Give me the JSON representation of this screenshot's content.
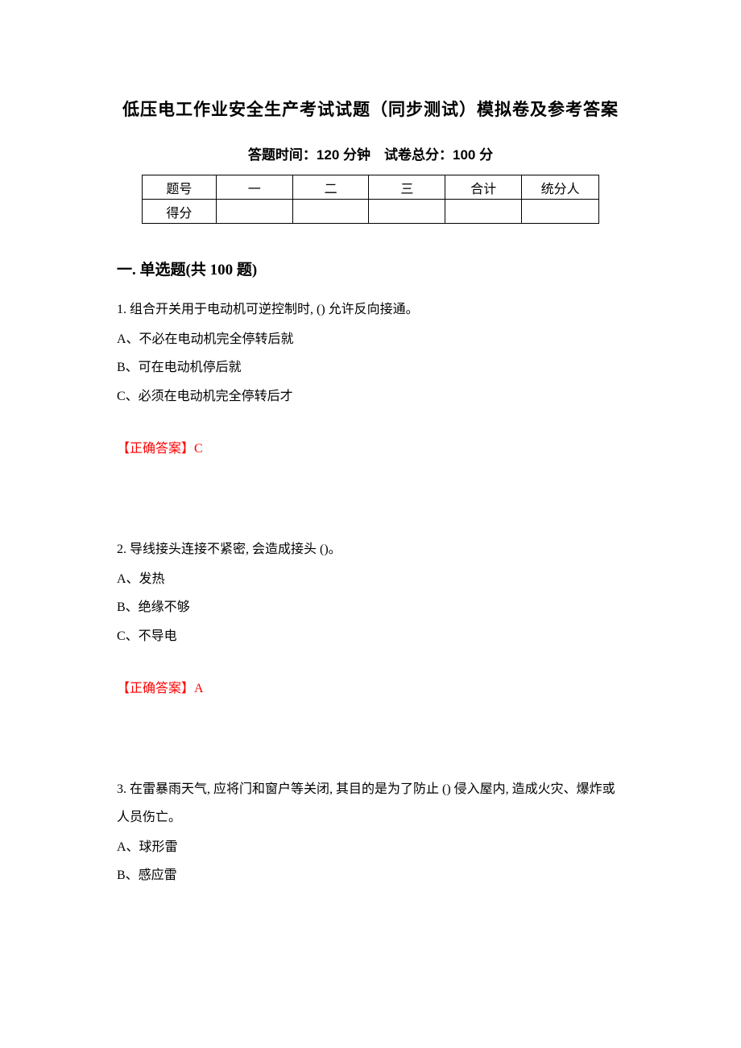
{
  "title": "低压电工作业安全生产考试试题（同步测试）模拟卷及参考答案",
  "subtitle": "答题时间：120 分钟　试卷总分：100 分",
  "table": {
    "row1": {
      "label": "题号",
      "c1": "一",
      "c2": "二",
      "c3": "三",
      "c4": "合计",
      "c5": "统分人"
    },
    "row2": {
      "label": "得分",
      "c1": "",
      "c2": "",
      "c3": "",
      "c4": "",
      "c5": ""
    }
  },
  "sectionTitle": "一. 单选题(共 100 题)",
  "questions": [
    {
      "stem": "1. 组合开关用于电动机可逆控制时, () 允许反向接通。",
      "options": [
        "A、不必在电动机完全停转后就",
        "B、可在电动机停后就",
        "C、必须在电动机完全停转后才"
      ],
      "answerLabel": "【正确答案】",
      "answerLetter": "C"
    },
    {
      "stem": "2. 导线接头连接不紧密, 会造成接头 ()。",
      "options": [
        "A、发热",
        "B、绝缘不够",
        "C、不导电"
      ],
      "answerLabel": "【正确答案】",
      "answerLetter": "A"
    },
    {
      "stem": "3. 在雷暴雨天气, 应将门和窗户等关闭, 其目的是为了防止 () 侵入屋内, 造成火灾、爆炸或人员伤亡。",
      "options": [
        "A、球形雷",
        "B、感应雷"
      ],
      "answerLabel": "",
      "answerLetter": ""
    }
  ]
}
